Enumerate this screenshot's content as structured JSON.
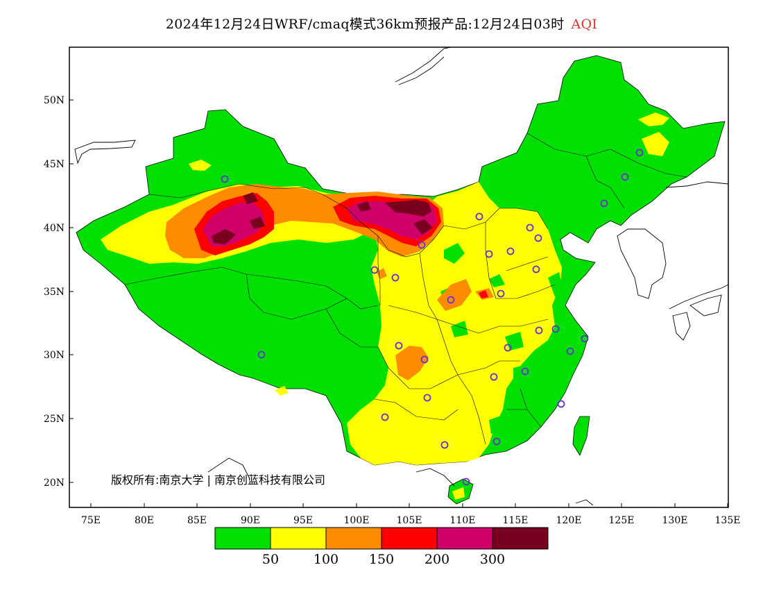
{
  "title": {
    "main": "2024年12月24日WRF/cmaq模式36km预报产品:12月24日03时",
    "indicator": "AQI",
    "indicator_color": "#e03030"
  },
  "copyright": "版权所有:南京大学 | 南京创蓝科技有限公司",
  "axes": {
    "lon_ticks": [
      "75E",
      "80E",
      "85E",
      "90E",
      "95E",
      "100E",
      "105E",
      "110E",
      "115E",
      "120E",
      "125E",
      "130E",
      "135E"
    ],
    "lat_ticks": [
      "50N",
      "45N",
      "40N",
      "35N",
      "30N",
      "25N",
      "20N"
    ]
  },
  "legend": {
    "colors": [
      "#00e000",
      "#ffff00",
      "#ff8c00",
      "#ff0000",
      "#d0006a",
      "#78001e"
    ],
    "labels": [
      "50",
      "100",
      "150",
      "200",
      "300"
    ]
  },
  "colors": {
    "good": "#00e000",
    "moderate": "#ffff00",
    "sensitive": "#ff8c00",
    "unhealthy": "#ff0000",
    "very_unhealthy": "#d0006a",
    "hazardous": "#78001e",
    "station_marker": "#6633cc"
  }
}
